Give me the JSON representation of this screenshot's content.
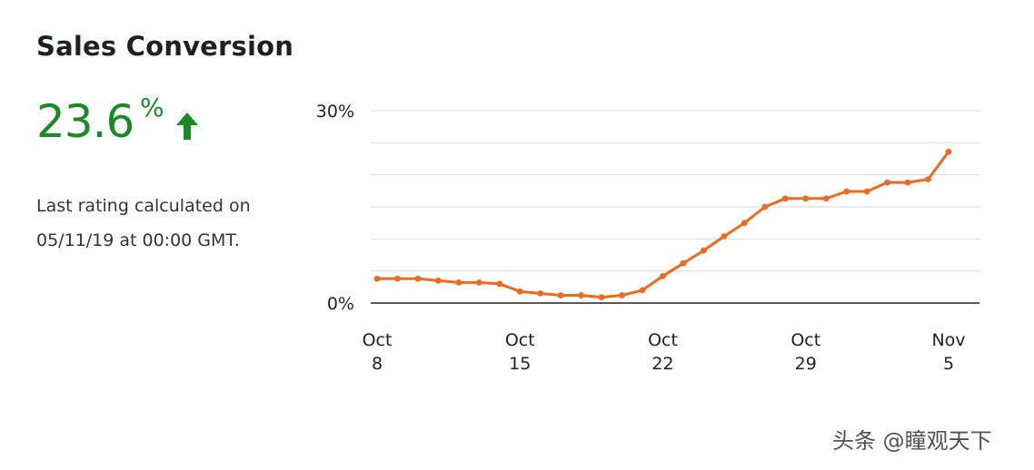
{
  "card": {
    "title": "Sales Conversion",
    "metric": {
      "value": "23.6",
      "unit": "%",
      "trend": "up",
      "color": "#1a8a24",
      "icon": "arrow-up-icon"
    },
    "note": "Last rating calculated on 05/11/19 at 00:00 GMT."
  },
  "watermark": "头条 @瞳观天下",
  "chart_data": {
    "type": "line",
    "title": "",
    "xlabel": "",
    "ylabel": "",
    "ylim": [
      0,
      30
    ],
    "y_ticks": [
      {
        "value": 0,
        "label": "0%"
      },
      {
        "value": 30,
        "label": "30%"
      }
    ],
    "grid": true,
    "x_ticks": [
      {
        "index": 0,
        "line1": "Oct",
        "line2": "8"
      },
      {
        "index": 7,
        "line1": "Oct",
        "line2": "15"
      },
      {
        "index": 14,
        "line1": "Oct",
        "line2": "22"
      },
      {
        "index": 21,
        "line1": "Oct",
        "line2": "29"
      },
      {
        "index": 28,
        "line1": "Nov",
        "line2": "5"
      }
    ],
    "series": [
      {
        "color": "#ee6a1c",
        "values": [
          3.8,
          3.8,
          3.8,
          3.5,
          3.2,
          3.2,
          3.0,
          1.8,
          1.5,
          1.2,
          1.2,
          0.9,
          1.2,
          2.0,
          4.2,
          6.2,
          8.2,
          10.4,
          12.5,
          15.0,
          16.3,
          16.3,
          16.3,
          17.4,
          17.4,
          18.8,
          18.8,
          19.3,
          23.6
        ]
      }
    ]
  }
}
